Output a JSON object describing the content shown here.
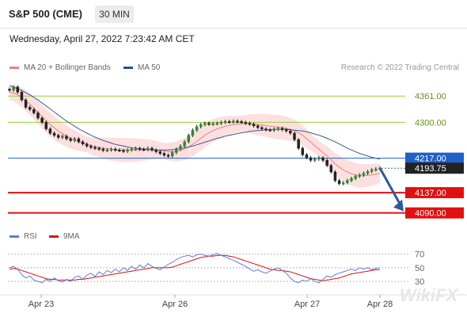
{
  "header": {
    "symbol": "S&P 500 (CME)",
    "timeframe": "30 MIN",
    "datetime": "Wednesday, April 27, 2022 7:23:42 AM CET"
  },
  "legend_main": [
    {
      "label": "MA 20 + Bollinger Bands",
      "color": "#f08080"
    },
    {
      "label": "MA 50",
      "color": "#2b4f8c"
    }
  ],
  "legend_rsi": [
    {
      "label": "RSI",
      "color": "#5b7fd8"
    },
    {
      "label": "9MA",
      "color": "#e01010"
    }
  ],
  "credit": "Research © 2022 Trading Central",
  "watermark": "WikiFX",
  "chart_data": {
    "type": "line",
    "x_tick_labels": [
      "Apr 23",
      "Apr 26",
      "Apr 27",
      "Apr 28"
    ],
    "y_range": [
      4060,
      4400
    ],
    "levels": [
      {
        "value": 4361.0,
        "label": "4361.00",
        "color": "#9acd32",
        "kind": "resistance"
      },
      {
        "value": 4300.0,
        "label": "4300.00",
        "color": "#9acd32",
        "kind": "resistance"
      },
      {
        "value": 4217.0,
        "label": "4217.00",
        "color": "#2060c8",
        "kind": "pivot"
      },
      {
        "value": 4193.75,
        "label": "4193.75",
        "color": "#222222",
        "kind": "last-price"
      },
      {
        "value": 4137.0,
        "label": "4137.00",
        "color": "#e01010",
        "kind": "support"
      },
      {
        "value": 4090.0,
        "label": "4090.00",
        "color": "#e01010",
        "kind": "support"
      }
    ],
    "price_series": [
      4375,
      4382,
      4370,
      4352,
      4335,
      4330,
      4322,
      4310,
      4300,
      4285,
      4275,
      4270,
      4265,
      4268,
      4262,
      4258,
      4262,
      4255,
      4250,
      4245,
      4242,
      4240,
      4238,
      4235,
      4236,
      4238,
      4236,
      4235,
      4233,
      4236,
      4238,
      4240,
      4238,
      4237,
      4240,
      4236,
      4232,
      4228,
      4224,
      4222,
      4230,
      4238,
      4245,
      4255,
      4270,
      4282,
      4290,
      4295,
      4298,
      4296,
      4297,
      4298,
      4300,
      4302,
      4301,
      4303,
      4302,
      4300,
      4298,
      4296,
      4292,
      4288,
      4285,
      4283,
      4282,
      4284,
      4286,
      4283,
      4280,
      4275,
      4260,
      4240,
      4225,
      4218,
      4212,
      4215,
      4218,
      4212,
      4200,
      4185,
      4165,
      4158,
      4160,
      4165,
      4170,
      4175,
      4178,
      4182,
      4186,
      4190,
      4192,
      4194
    ],
    "ma20": [
      4370,
      4368,
      4364,
      4358,
      4350,
      4342,
      4333,
      4323,
      4313,
      4304,
      4295,
      4287,
      4280,
      4274,
      4268,
      4263,
      4259,
      4255,
      4252,
      4249,
      4246,
      4244,
      4242,
      4240,
      4239,
      4238,
      4237,
      4236,
      4236,
      4236,
      4236,
      4236,
      4236,
      4236,
      4237,
      4237,
      4236,
      4235,
      4234,
      4232,
      4232,
      4233,
      4235,
      4238,
      4243,
      4249,
      4256,
      4263,
      4270,
      4276,
      4281,
      4285,
      4288,
      4291,
      4293,
      4295,
      4296,
      4297,
      4297,
      4297,
      4296,
      4295,
      4294,
      4293,
      4291,
      4290,
      4289,
      4288,
      4286,
      4284,
      4281,
      4276,
      4270,
      4262,
      4254,
      4246,
      4238,
      4230,
      4222,
      4213,
      4204,
      4196,
      4190,
      4185,
      4181,
      4178,
      4176,
      4176,
      4177,
      4178,
      4180,
      4182
    ],
    "ma50": [
      4385,
      4382,
      4378,
      4374,
      4369,
      4364,
      4358,
      4352,
      4345,
      4338,
      4331,
      4324,
      4317,
      4310,
      4303,
      4297,
      4291,
      4285,
      4280,
      4275,
      4270,
      4266,
      4262,
      4258,
      4255,
      4252,
      4249,
      4247,
      4245,
      4243,
      4241,
      4240,
      4239,
      4238,
      4237,
      4236,
      4236,
      4236,
      4236,
      4236,
      4237,
      4238,
      4239,
      4241,
      4243,
      4245,
      4248,
      4251,
      4254,
      4257,
      4260,
      4263,
      4265,
      4268,
      4270,
      4272,
      4274,
      4276,
      4277,
      4279,
      4280,
      4281,
      4282,
      4283,
      4283,
      4284,
      4284,
      4284,
      4284,
      4283,
      4282,
      4281,
      4280,
      4278,
      4276,
      4273,
      4270,
      4267,
      4263,
      4259,
      4255,
      4250,
      4245,
      4240,
      4236,
      4232,
      4228,
      4225,
      4222,
      4219,
      4217,
      4215
    ],
    "rsi": {
      "levels": [
        70,
        50,
        30
      ],
      "tick_labels": [
        "70",
        "50",
        "30"
      ],
      "range": [
        15,
        80
      ],
      "rsi_series": [
        50,
        52,
        48,
        40,
        35,
        38,
        32,
        30,
        28,
        33,
        30,
        35,
        31,
        29,
        33,
        30,
        36,
        38,
        33,
        39,
        42,
        37,
        44,
        40,
        46,
        43,
        48,
        44,
        50,
        46,
        52,
        48,
        54,
        50,
        56,
        52,
        49,
        47,
        51,
        55,
        58,
        62,
        65,
        67,
        68,
        66,
        69,
        70,
        68,
        67,
        69,
        71,
        68,
        66,
        63,
        61,
        58,
        55,
        52,
        48,
        45,
        47,
        44,
        42,
        45,
        48,
        50,
        46,
        42,
        35,
        30,
        28,
        32,
        30,
        34,
        30,
        28,
        33,
        38,
        36,
        40,
        42,
        44,
        46,
        48,
        46,
        50,
        48,
        50,
        47,
        49,
        50
      ],
      "ma9_series": [
        48,
        49,
        48,
        46,
        44,
        42,
        40,
        38,
        36,
        34,
        33,
        33,
        32,
        32,
        32,
        32,
        32,
        33,
        33,
        34,
        35,
        36,
        37,
        38,
        39,
        40,
        41,
        42,
        43,
        44,
        45,
        46,
        47,
        48,
        49,
        50,
        50,
        50,
        50,
        50,
        51,
        53,
        55,
        57,
        59,
        61,
        63,
        65,
        66,
        67,
        67,
        68,
        68,
        68,
        67,
        66,
        64,
        62,
        60,
        58,
        56,
        54,
        52,
        50,
        48,
        47,
        46,
        46,
        45,
        44,
        42,
        40,
        38,
        36,
        34,
        33,
        32,
        31,
        32,
        33,
        34,
        35,
        37,
        39,
        41,
        42,
        43,
        44,
        45,
        46,
        47,
        47
      ]
    }
  }
}
